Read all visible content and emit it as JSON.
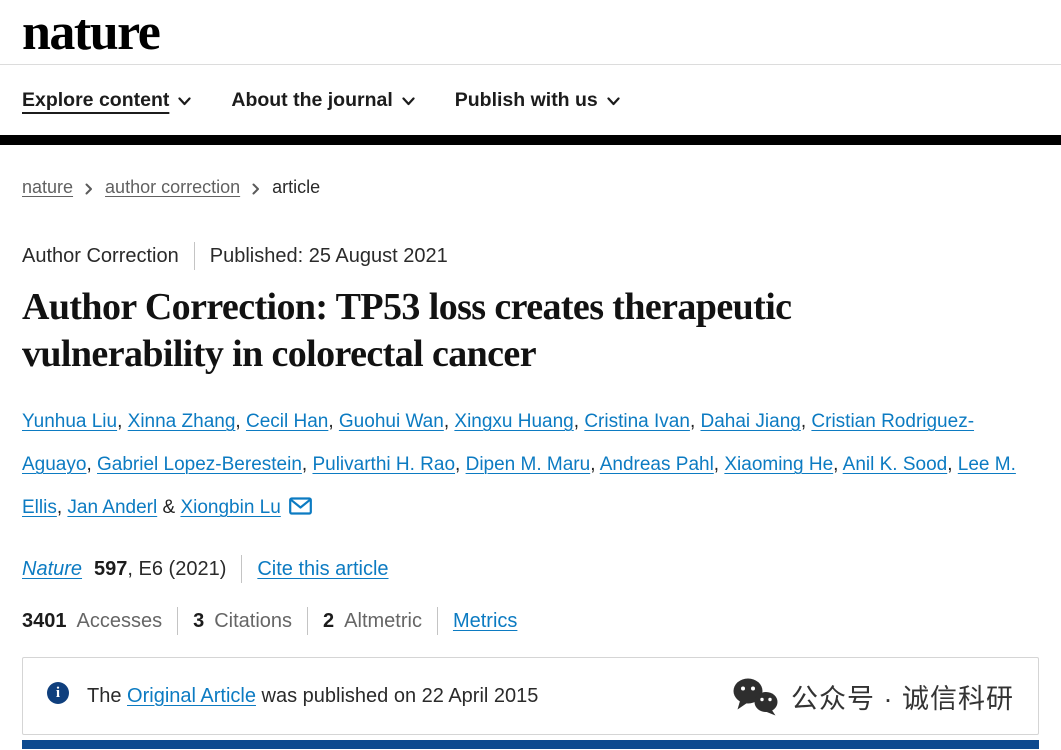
{
  "colors": {
    "link_blue": "#0c7bc2",
    "text_dark": "#222222",
    "text_gray": "#666666",
    "info_icon_blue": "#0f3f7d",
    "bottom_bar_blue": "#0d4a8f",
    "header_bar_black": "#000000"
  },
  "header": {
    "logo_text": "nature",
    "nav_items": [
      {
        "label": "Explore content",
        "underlined": true
      },
      {
        "label": "About the journal",
        "underlined": false
      },
      {
        "label": "Publish with us",
        "underlined": false
      }
    ]
  },
  "breadcrumb": [
    {
      "label": "nature",
      "is_link": true
    },
    {
      "label": "author correction",
      "is_link": true
    },
    {
      "label": "article",
      "is_link": false
    }
  ],
  "article": {
    "type_label": "Author Correction",
    "published": "Published: 25 August 2021",
    "title": "Author Correction: TP53 loss creates therapeutic vulnerability in colorectal cancer",
    "authors": [
      "Yunhua Liu",
      "Xinna Zhang",
      "Cecil Han",
      "Guohui Wan",
      "Xingxu Huang",
      "Cristina Ivan",
      "Dahai Jiang",
      "Cristian Rodriguez-Aguayo",
      "Gabriel Lopez-Berestein",
      "Pulivarthi H. Rao",
      "Dipen M. Maru",
      "Andreas Pahl",
      "Xiaoming He",
      "Anil K. Sood",
      "Lee M. Ellis",
      "Jan Anderl",
      "Xiongbin Lu"
    ],
    "citation": {
      "journal": "Nature",
      "volume": "597",
      "issue_text": ", E6 (2021)",
      "cite_link_label": "Cite this article"
    },
    "metrics": [
      {
        "value": "3401",
        "label": "Accesses"
      },
      {
        "value": "3",
        "label": "Citations"
      },
      {
        "value": "2",
        "label": "Altmetric"
      }
    ],
    "metrics_link_label": "Metrics"
  },
  "notice": {
    "icon_glyph": "i",
    "text_before": "The ",
    "link_label": "Original Article",
    "text_after": " was published on 22 April 2015"
  },
  "watermark": {
    "label": "公众号 · 诚信科研"
  }
}
